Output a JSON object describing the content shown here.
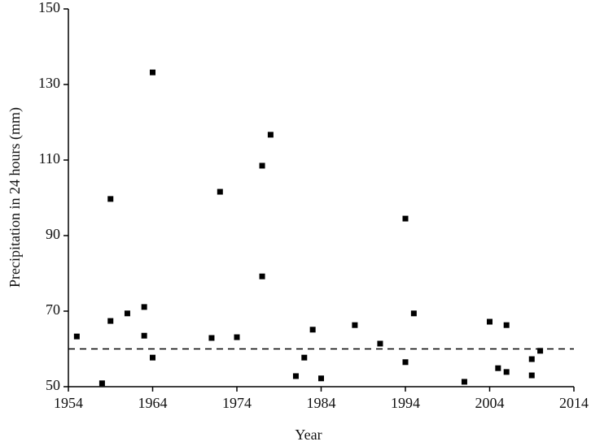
{
  "chart_data": {
    "type": "scatter",
    "x_label": "Year",
    "y_label": "Precipitation in 24 hours (mm)",
    "x": [
      1955,
      1958,
      1959,
      1959,
      1961,
      1963,
      1963,
      1964,
      1964,
      1971,
      1972,
      1974,
      1977,
      1977,
      1978,
      1981,
      1982,
      1983,
      1984,
      1988,
      1991,
      1994,
      1994,
      1995,
      2001,
      2004,
      2005,
      2006,
      2006,
      2009,
      2009,
      2010
    ],
    "values": [
      63.3,
      50.9,
      99.7,
      67.4,
      69.4,
      71.1,
      63.5,
      57.7,
      133.2,
      62.9,
      101.6,
      63.1,
      108.5,
      79.2,
      116.7,
      52.8,
      57.7,
      65.1,
      52.2,
      66.3,
      61.4,
      94.5,
      56.5,
      69.4,
      51.3,
      67.2,
      54.9,
      66.3,
      53.9,
      57.3,
      53.0,
      59.5
    ],
    "color": "#000000",
    "reference_line": 60,
    "xlim": [
      1954,
      2014
    ],
    "xticks": [
      1954,
      1964,
      1974,
      1984,
      1994,
      2004,
      2014
    ],
    "ylim": [
      50,
      150
    ],
    "yticks": [
      50,
      70,
      90,
      110,
      130,
      150
    ]
  }
}
